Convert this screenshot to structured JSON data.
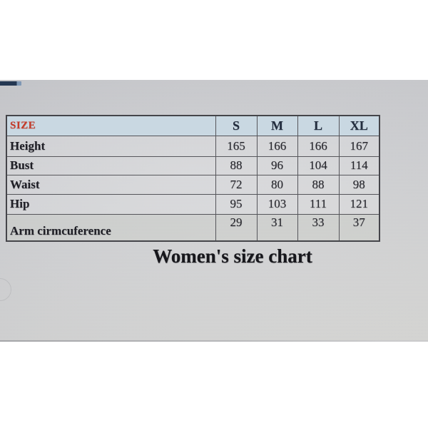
{
  "title": "Women's size chart",
  "table": {
    "header": {
      "size": "SIZE",
      "cols": [
        "S",
        "M",
        "L",
        "XL"
      ]
    },
    "rows": [
      {
        "label": "Height",
        "values": [
          "165",
          "166",
          "166",
          "167"
        ]
      },
      {
        "label": "Bust",
        "values": [
          "88",
          "96",
          "104",
          "114"
        ]
      },
      {
        "label": "Waist",
        "values": [
          "72",
          "80",
          "88",
          "98"
        ]
      },
      {
        "label": "Hip",
        "values": [
          "95",
          "103",
          "111",
          "121"
        ]
      },
      {
        "label": "Arm cirmcuference",
        "values": [
          "29",
          "31",
          "33",
          "37"
        ]
      }
    ]
  },
  "chart_data": {
    "type": "table",
    "title": "Women's size chart",
    "columns": [
      "SIZE",
      "S",
      "M",
      "L",
      "XL"
    ],
    "rows": [
      [
        "Height",
        165,
        166,
        166,
        167
      ],
      [
        "Bust",
        88,
        96,
        104,
        114
      ],
      [
        "Waist",
        72,
        80,
        88,
        98
      ],
      [
        "Hip",
        95,
        103,
        111,
        121
      ],
      [
        "Arm cirmcuference",
        29,
        31,
        33,
        37
      ]
    ]
  },
  "colors": {
    "header_bg": "#c9d8e2",
    "size_text": "#c63a28",
    "header_text": "#232d3e",
    "body_text": "#26262c",
    "table_border": "#45454a",
    "screen_top": "#c6c7cb",
    "screen_bottom": "#dcdcda",
    "fragment_navy": "#243752"
  }
}
